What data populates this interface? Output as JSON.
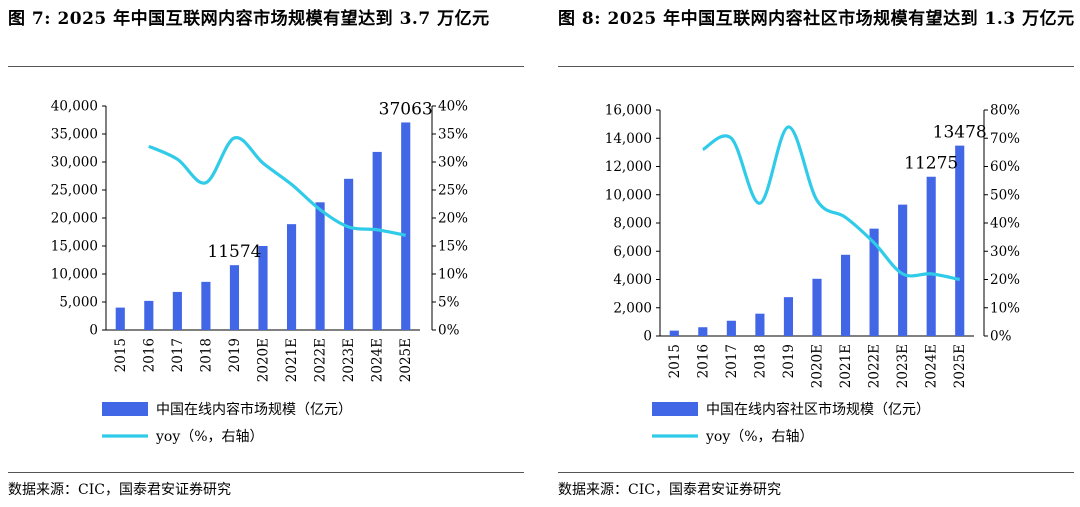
{
  "colors": {
    "bar": "#4166e6",
    "line": "#2fcbe8"
  },
  "charts": [
    {
      "title": "图 7: 2025 年中国互联网内容市场规模有望达到 3.7 万亿元",
      "source": "数据来源：CIC，国泰君安证券研究",
      "chart_data": {
        "type": "bar",
        "categories": [
          "2015",
          "2016",
          "2017",
          "2018",
          "2019",
          "2020E",
          "2021E",
          "2022E",
          "2023E",
          "2024E",
          "2025E"
        ],
        "series": [
          {
            "name": "中国在线内容市场规模（亿元）",
            "type": "bar",
            "axis": "left",
            "values": [
              4000,
              5200,
              6800,
              8600,
              11574,
              15000,
              18900,
              22800,
              27000,
              31800,
              37063
            ]
          },
          {
            "name": "yoy（%，右轴）",
            "type": "line",
            "axis": "right",
            "values": [
              null,
              32.8,
              30.5,
              26.3,
              34.3,
              29.8,
              26.0,
              21.5,
              18.4,
              17.9,
              16.9
            ]
          }
        ],
        "ylim_left": [
          0,
          40000
        ],
        "ylim_right": [
          0,
          40
        ],
        "yticks_left": [
          "0",
          "5,000",
          "10,000",
          "15,000",
          "20,000",
          "25,000",
          "30,000",
          "35,000",
          "40,000"
        ],
        "yticks_right": [
          "0%",
          "5%",
          "10%",
          "15%",
          "20%",
          "25%",
          "30%",
          "35%",
          "40%"
        ],
        "data_labels": [
          {
            "index": 4,
            "text": "11574"
          },
          {
            "index": 10,
            "text": "37063"
          }
        ],
        "legend_position": "bottom",
        "grid": false
      }
    },
    {
      "title": "图 8: 2025 年中国互联网内容社区市场规模有望达到 1.3 万亿元",
      "source": "数据来源：CIC，国泰君安证券研究",
      "chart_data": {
        "type": "bar",
        "categories": [
          "2015",
          "2016",
          "2017",
          "2018",
          "2019",
          "2020E",
          "2021E",
          "2022E",
          "2023E",
          "2024E",
          "2025E"
        ],
        "series": [
          {
            "name": "中国在线内容社区市场规模（亿元）",
            "type": "bar",
            "axis": "left",
            "values": [
              380,
              620,
              1080,
              1580,
              2750,
              4050,
              5750,
              7600,
              9300,
              11275,
              13478
            ]
          },
          {
            "name": "yoy（%，右轴）",
            "type": "line",
            "axis": "right",
            "values": [
              null,
              66,
              70,
              47,
              74,
              48,
              42,
              33,
              22,
              22,
              20
            ]
          }
        ],
        "ylim_left": [
          0,
          16000
        ],
        "ylim_right": [
          0,
          80
        ],
        "yticks_left": [
          "0",
          "2,000",
          "4,000",
          "6,000",
          "8,000",
          "10,000",
          "12,000",
          "14,000",
          "16,000"
        ],
        "yticks_right": [
          "0%",
          "10%",
          "20%",
          "30%",
          "40%",
          "50%",
          "60%",
          "70%",
          "80%"
        ],
        "data_labels": [
          {
            "index": 9,
            "text": "11275"
          },
          {
            "index": 10,
            "text": "13478"
          }
        ],
        "legend_position": "bottom",
        "grid": false
      }
    }
  ]
}
